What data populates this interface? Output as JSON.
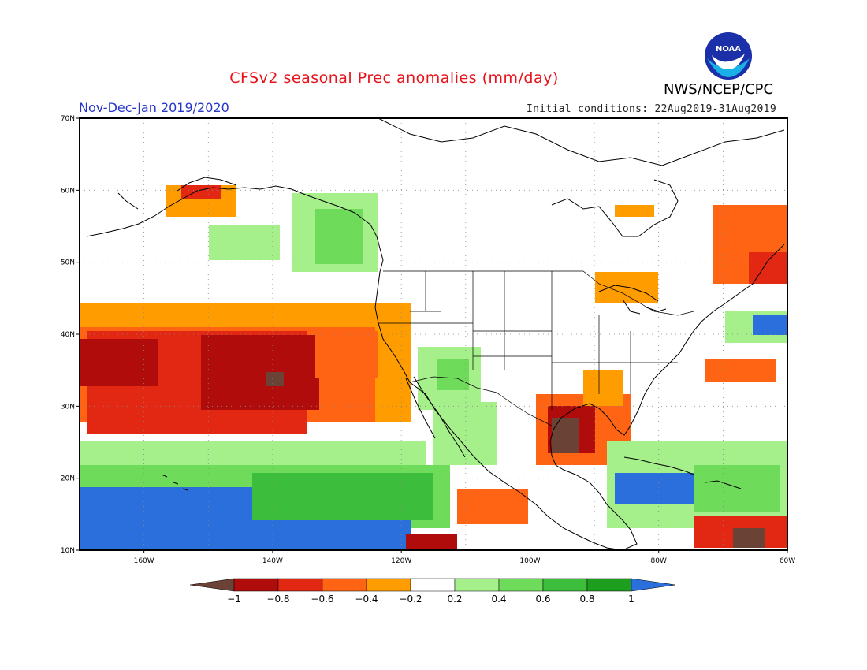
{
  "header": {
    "title": "CFSv2 seasonal Prec anomalies (mm/day)",
    "organization": "NWS/NCEP/CPC",
    "season": "Nov-Dec-Jan 2019/2020",
    "initial_conditions": "Initial conditions: 22Aug2019-31Aug2019",
    "logo_text": "NOAA"
  },
  "map": {
    "lon_range": [
      -170,
      -60
    ],
    "lat_range": [
      10,
      70
    ],
    "lat_labels": [
      "70N",
      "60N",
      "50N",
      "40N",
      "30N",
      "20N",
      "10N"
    ],
    "lon_labels": [
      "160W",
      "140W",
      "120W",
      "100W",
      "80W",
      "60W"
    ],
    "grid": "dotted"
  },
  "colorbar": {
    "ticks": [
      "-1",
      "-0.8",
      "-0.6",
      "-0.4",
      "-0.2",
      "0.2",
      "0.4",
      "0.6",
      "0.8",
      "1"
    ],
    "colors": [
      "#6b4336",
      "#b00c0c",
      "#e22712",
      "#ff6414",
      "#ff9d00",
      "#ffffff",
      "#a6f08c",
      "#6edc5a",
      "#3cbe3c",
      "#1e9e1e",
      "#2a6fdb"
    ]
  }
}
